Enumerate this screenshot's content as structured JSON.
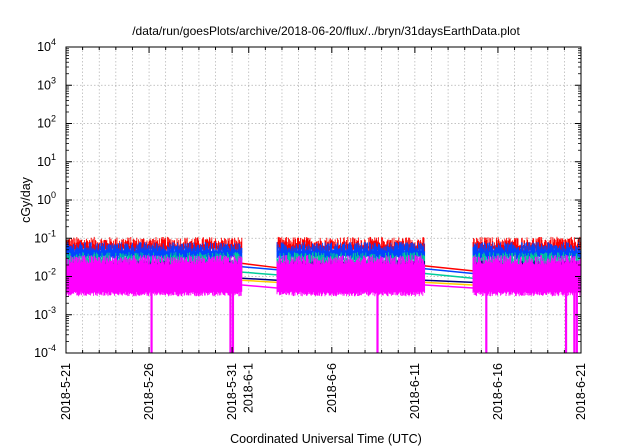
{
  "chart_data": {
    "type": "line",
    "title": "/data/run/goesPlots/archive/2018-06-20/flux/../bryn/31daysEarthData.plot",
    "xlabel": "Coordinated Universal Time (UTC)",
    "ylabel": "cGy/day",
    "yscale": "log",
    "ylim": [
      0.0001,
      10000
    ],
    "xlim": [
      "2018-05-21",
      "2018-06-21"
    ],
    "grid": true,
    "x_ticks": [
      "2018-5-21",
      "2018-5-26",
      "2018-5-31",
      "2018-6-1",
      "2018-6-6",
      "2018-6-11",
      "2018-6-16",
      "2018-6-21"
    ],
    "x_tick_days": [
      0,
      5,
      10,
      11,
      16,
      21,
      26,
      31
    ],
    "y_ticks": [
      {
        "base": "10",
        "exp": "-4",
        "value": 0.0001
      },
      {
        "base": "10",
        "exp": "-3",
        "value": 0.001
      },
      {
        "base": "10",
        "exp": "-2",
        "value": 0.01
      },
      {
        "base": "10",
        "exp": "-1",
        "value": 0.1
      },
      {
        "base": "10",
        "exp": "0",
        "value": 1
      },
      {
        "base": "10",
        "exp": "1",
        "value": 10
      },
      {
        "base": "10",
        "exp": "2",
        "value": 100
      },
      {
        "base": "10",
        "exp": "3",
        "value": 1000
      },
      {
        "base": "10",
        "exp": "4",
        "value": 10000
      }
    ],
    "segments_days": [
      [
        0,
        10.6
      ],
      [
        12.7,
        21.6
      ],
      [
        24.5,
        31
      ]
    ],
    "gap_ends": {
      "left": 10.6,
      "right": 12.7,
      "left2": 21.6,
      "right2": 24.5
    },
    "series": [
      {
        "color": "#ff0000",
        "top": 0.075,
        "bottom": 0.055,
        "gap": [
          0.022,
          0.017,
          0.019,
          0.014
        ]
      },
      {
        "color": "#0044ff",
        "top": 0.055,
        "bottom": 0.035,
        "gap": [
          0.018,
          0.015,
          0.016,
          0.012
        ]
      },
      {
        "color": "#00cc99",
        "top": 0.03,
        "bottom": 0.02,
        "gap": [
          0.013,
          0.011,
          0.012,
          0.009
        ]
      },
      {
        "color": "#000080",
        "top": 0.018,
        "bottom": 0.012,
        "gap": [
          0.009,
          0.008,
          0.008,
          0.007
        ]
      },
      {
        "color": "#ffcc00",
        "top": 0.014,
        "bottom": 0.01,
        "gap": [
          0.008,
          0.007,
          0.007,
          0.006
        ]
      },
      {
        "color": "#ff00ff",
        "top": 0.025,
        "bottom": 0.004,
        "gap": [
          0.006,
          0.005,
          0.006,
          0.005
        ]
      }
    ],
    "dropouts_days": [
      5.15,
      9.9,
      10.05,
      18.75,
      25.3,
      30.1,
      30.6,
      30.75
    ]
  }
}
